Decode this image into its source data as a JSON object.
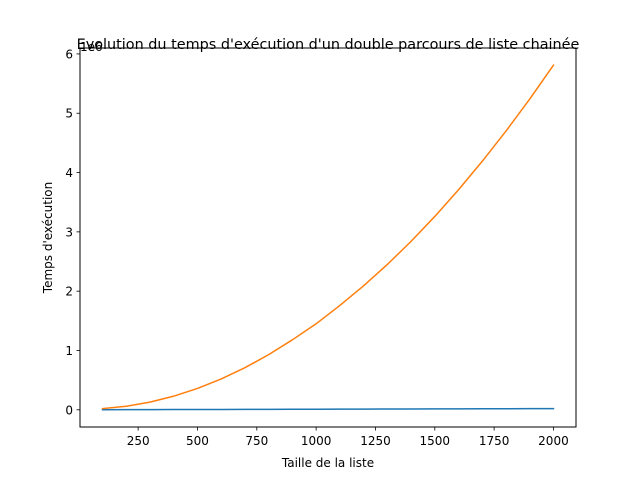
{
  "chart_data": {
    "type": "line",
    "title": "Evolution du temps d'exécution d'un double parcours de liste chainée",
    "xlabel": "Taille de la liste",
    "ylabel": "Temps d'exécution",
    "offset_text": "1e6",
    "xlim": [
      5,
      2095
    ],
    "ylim": [
      -290000,
      6100000
    ],
    "x_ticks": [
      250,
      500,
      750,
      1000,
      1250,
      1500,
      1750,
      2000
    ],
    "y_ticks": [
      0,
      1,
      2,
      3,
      4,
      5,
      6
    ],
    "y_tick_scale": 1000000,
    "grid": false,
    "legend": "none",
    "x": [
      100,
      200,
      300,
      400,
      500,
      600,
      700,
      800,
      900,
      1000,
      1100,
      1200,
      1300,
      1400,
      1500,
      1600,
      1700,
      1800,
      1900,
      2000
    ],
    "series": [
      {
        "color": "#1f77b4",
        "values": [
          1000,
          2000,
          3000,
          4000,
          5000,
          6000,
          7000,
          8000,
          9000,
          10000,
          11000,
          12000,
          13000,
          14000,
          15000,
          16000,
          17000,
          18000,
          19000,
          20000
        ]
      },
      {
        "color": "#ff7f0e",
        "values": [
          20000,
          60000,
          130000,
          230000,
          360000,
          520000,
          710000,
          930000,
          1180000,
          1450000,
          1760000,
          2090000,
          2450000,
          2840000,
          3260000,
          3710000,
          4190000,
          4700000,
          5240000,
          5810000
        ]
      }
    ]
  }
}
